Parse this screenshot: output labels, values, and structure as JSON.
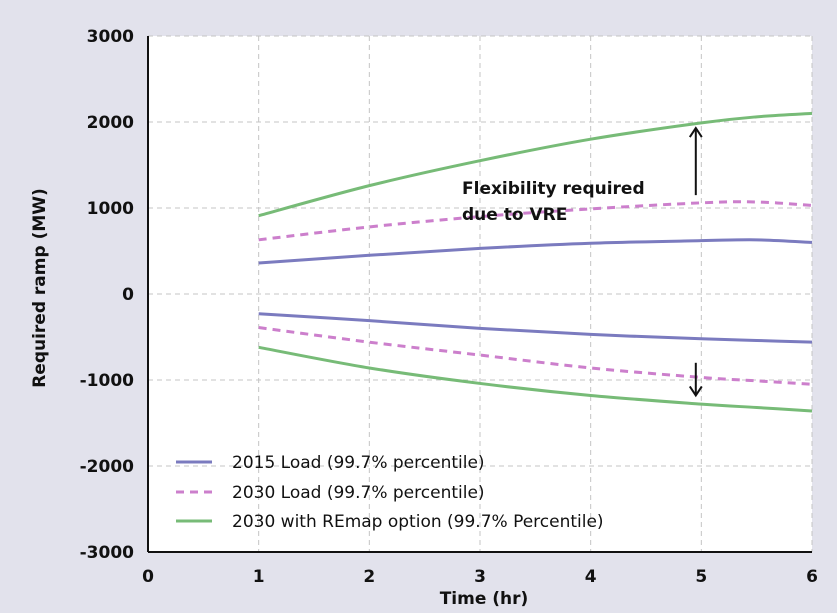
{
  "chart_data": {
    "type": "line",
    "xlabel": "Time (hr)",
    "ylabel": "Required ramp (MW)",
    "xlim": [
      0,
      6
    ],
    "ylim": [
      -3000,
      3000
    ],
    "x_ticks": [
      0,
      1,
      2,
      3,
      4,
      5,
      6
    ],
    "y_ticks": [
      3000,
      2000,
      1000,
      0,
      -1000,
      -2000,
      -3000
    ],
    "grid": true,
    "legend_position": "bottom-left",
    "x": [
      1,
      2,
      3,
      4,
      5,
      5.5,
      6
    ],
    "series": [
      {
        "name": "2015 Load (99.7% percentile)",
        "color": "#7b7bbf",
        "style": "solid",
        "upper": [
          360,
          450,
          530,
          590,
          620,
          630,
          600
        ],
        "lower": [
          -230,
          -310,
          -400,
          -470,
          -520,
          -540,
          -560
        ]
      },
      {
        "name": "2030 Load (99.7% percentile)",
        "color": "#cc7fcc",
        "style": "dashed",
        "upper": [
          630,
          780,
          900,
          990,
          1060,
          1070,
          1030
        ],
        "lower": [
          -390,
          -560,
          -710,
          -860,
          -970,
          -1010,
          -1050
        ]
      },
      {
        "name": "2030 with REmap option (99.7% Percentile)",
        "color": "#77bb77",
        "style": "solid",
        "upper": [
          910,
          1260,
          1550,
          1800,
          1990,
          2060,
          2100
        ],
        "lower": [
          -620,
          -860,
          -1040,
          -1180,
          -1280,
          -1320,
          -1360
        ]
      }
    ],
    "annotation": {
      "line1": "Flexibility required",
      "line2": "due to VRE"
    },
    "arrows": [
      {
        "x": 4.95,
        "from": 1150,
        "to": 1930,
        "direction": "up"
      },
      {
        "x": 4.95,
        "from": -800,
        "to": -1180,
        "direction": "down"
      }
    ]
  }
}
